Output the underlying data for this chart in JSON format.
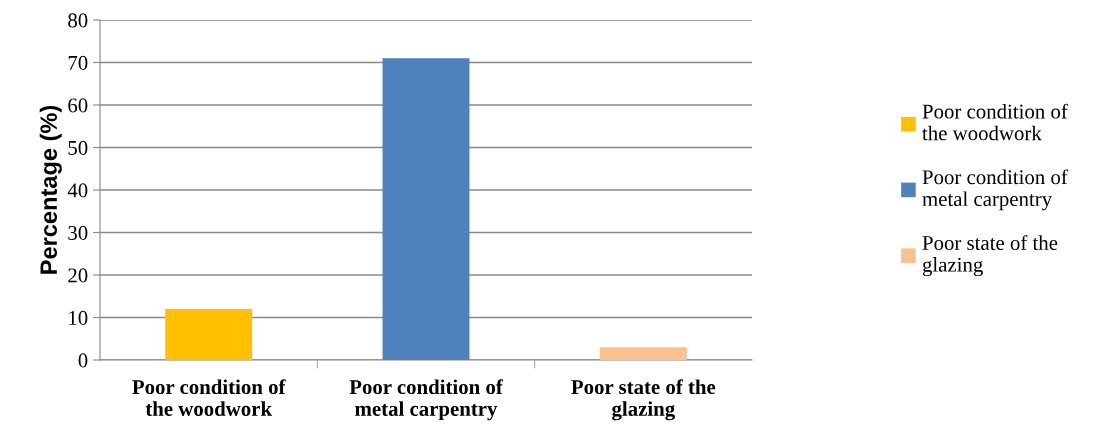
{
  "chart_data": {
    "type": "bar",
    "ylabel": "Percentage (%)",
    "categories": [
      "Poor condition of the woodwork",
      "Poor condition of metal carpentry",
      "Poor state of the glazing"
    ],
    "series": [
      {
        "name": "Poor condition of the woodwork",
        "color": "#ffc000",
        "values": [
          12,
          null,
          null
        ]
      },
      {
        "name": "Poor condition of metal carpentry",
        "color": "#4f81bd",
        "values": [
          null,
          71,
          null
        ]
      },
      {
        "name": "Poor state of the glazing",
        "color": "#fac090",
        "values": [
          null,
          null,
          3
        ]
      }
    ],
    "ylim": [
      0,
      80
    ],
    "yticks": [
      0,
      10,
      20,
      30,
      40,
      50,
      60,
      70,
      80
    ],
    "grid": "y",
    "legend": "right"
  }
}
